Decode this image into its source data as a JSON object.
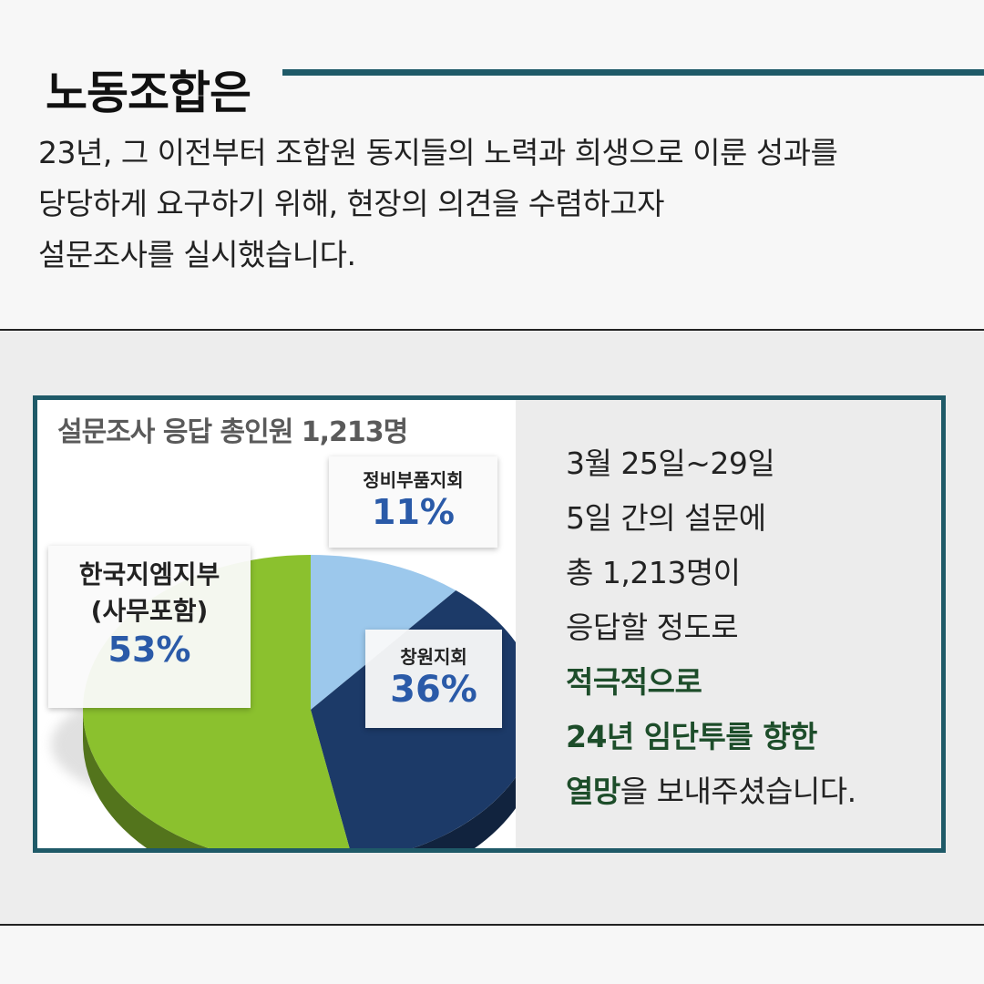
{
  "header": {
    "title": "노동조합은",
    "intro_lines": [
      "23년, 그 이전부터 조합원 동지들의 노력과 희생으로 이룬 성과를",
      "당당하게 요구하기 위해, 현장의 의견을 수렴하고자",
      "설문조사를 실시했습니다."
    ]
  },
  "colors": {
    "accent": "#1f5a68",
    "emphasis": "#1d4d2a",
    "percent_text": "#2a5aa8"
  },
  "chart_data": {
    "type": "pie",
    "title": "설문조사 응답 총인원 1,213명",
    "slices": [
      {
        "label": "정비부품지회",
        "value": 11,
        "display": "11%",
        "color": "#9cc8ec"
      },
      {
        "label": "창원지회",
        "value": 36,
        "display": "36%",
        "color": "#1c3a68"
      },
      {
        "label": "한국지엠지부 (사무포함)",
        "value": 53,
        "display": "53%",
        "color": "#8bc12e"
      }
    ],
    "label_lines": {
      "slice3_line1": "한국지엠지부",
      "slice3_line2": "(사무포함)"
    }
  },
  "summary": {
    "lines": [
      {
        "text": "3월 25일~29일",
        "emphasis": false
      },
      {
        "text": "5일 간의 설문에",
        "emphasis": false
      },
      {
        "text": "총 1,213명이",
        "emphasis": false
      },
      {
        "text": "응답할 정도로",
        "emphasis": false
      },
      {
        "text": "적극적으로",
        "emphasis": true
      },
      {
        "text": "24년 임단투를 향한",
        "emphasis": true
      }
    ],
    "last_line_emphasis": "열망",
    "last_line_rest": "을 보내주셨습니다."
  }
}
